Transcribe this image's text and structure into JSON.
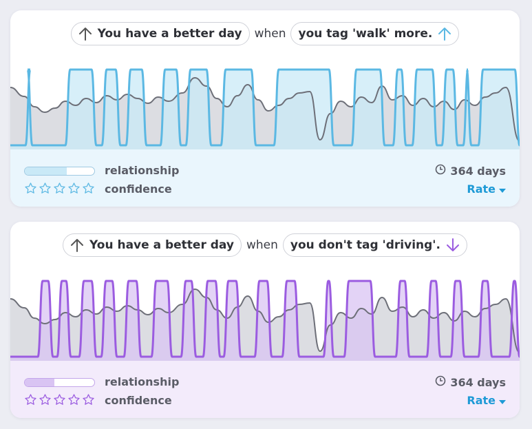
{
  "cards": [
    {
      "accent": "#5bb8e3",
      "accent_fill": "#c9e9f7",
      "head_left_arrow": "arrow-up-icon",
      "head_left": "You have a better day",
      "connector": "when",
      "head_right": "you tag 'walk' more.",
      "head_right_arrow": "arrow-up-icon",
      "relationship_label": "relationship",
      "relationship_strength": 0.6,
      "confidence_label": "confidence",
      "confidence_stars": 0,
      "days": "364 days",
      "rate_label": "Rate"
    },
    {
      "accent": "#9b5ce0",
      "accent_fill": "#d9c4f3",
      "head_left_arrow": "arrow-up-icon",
      "head_left": "You have a better day",
      "connector": "when",
      "head_right": "you don't tag 'driving'.",
      "head_right_arrow": "arrow-down-icon",
      "relationship_label": "relationship",
      "relationship_strength": 0.43,
      "confidence_label": "confidence",
      "confidence_stars": 0,
      "days": "364 days",
      "rate_label": "Rate"
    }
  ]
}
